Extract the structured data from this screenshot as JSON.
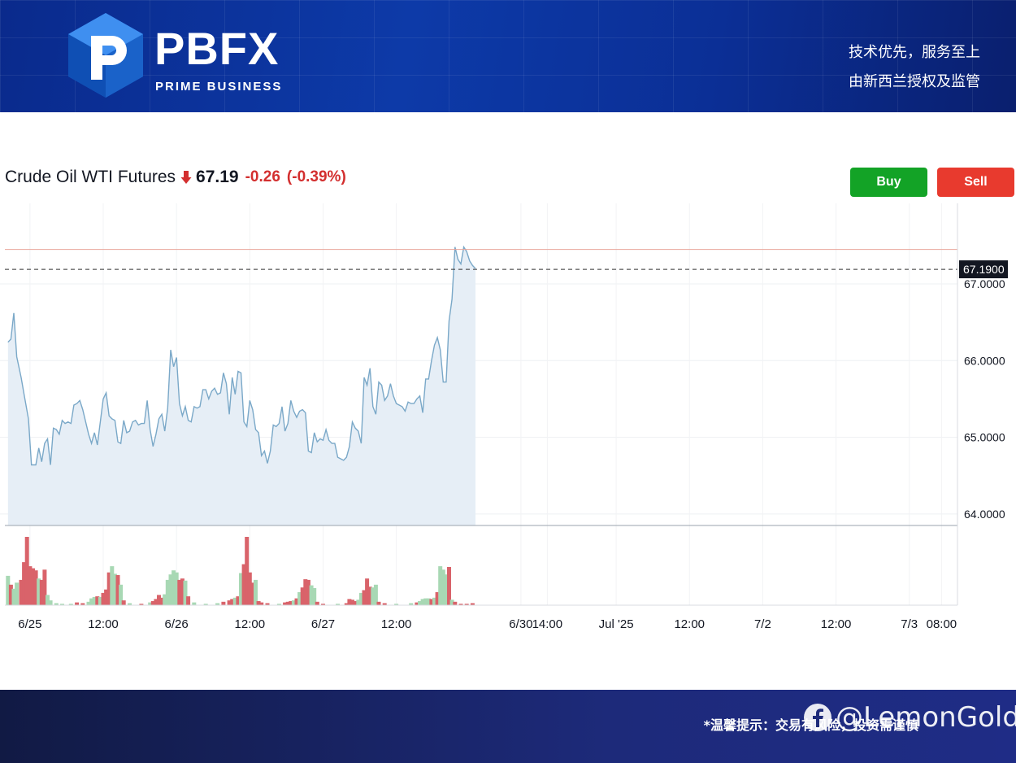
{
  "banner": {
    "brand": "PBFX",
    "brand_sub": "PRIME BUSINESS",
    "tagline_1": "技术优先，服务至上",
    "tagline_2": "由新西兰授权及监管"
  },
  "instrument": {
    "name": "Crude Oil WTI Futures",
    "last": "67.19",
    "change": "-0.26",
    "change_pct": "(-0.39%)",
    "direction": "down"
  },
  "actions": {
    "buy_label": "Buy",
    "sell_label": "Sell"
  },
  "colors": {
    "up": "#13a326",
    "down": "#e83a2e",
    "line": "#7aa8c8",
    "area": "#e6eef6",
    "vol_up": "#a8d8b4",
    "vol_down": "#d9636a",
    "ref_line": "#e8a59a"
  },
  "footer": {
    "notice": "*温馨提示：交易有风险，投资需谨慎",
    "watermark": "@LemonGold"
  },
  "chart_data": {
    "type": "area",
    "title": "Crude Oil WTI Futures",
    "y_ticks": [
      "64.0000",
      "65.0000",
      "66.0000",
      "67.0000"
    ],
    "ylim": [
      63.85,
      68.05
    ],
    "x_ticks": [
      {
        "label": "6/25",
        "t": 1.0
      },
      {
        "label": "12:00",
        "t": 1.5
      },
      {
        "label": "6/26",
        "t": 2.0
      },
      {
        "label": "12:00",
        "t": 2.5
      },
      {
        "label": "6/27",
        "t": 3.0
      },
      {
        "label": "12:00",
        "t": 3.5
      },
      {
        "label": "6/30",
        "t": 4.35
      },
      {
        "label": "14:00",
        "t": 4.53
      },
      {
        "label": "Jul '25",
        "t": 5.0
      },
      {
        "label": "12:00",
        "t": 5.5
      },
      {
        "label": "7/2",
        "t": 6.0
      },
      {
        "label": "12:00",
        "t": 6.5
      },
      {
        "label": "7/3",
        "t": 7.0
      },
      {
        "label": "08:00",
        "t": 7.22
      }
    ],
    "xlim": [
      0.84,
      7.24
    ],
    "current_price_label": "67.1900",
    "current_price": 67.19,
    "previous_close": 67.45,
    "grid": true,
    "series": [
      {
        "values": [
          [
            0.85,
            66.24
          ],
          [
            0.87,
            66.28
          ],
          [
            0.89,
            66.62
          ],
          [
            0.91,
            66.05
          ],
          [
            0.94,
            65.78
          ],
          [
            0.96,
            65.56
          ],
          [
            0.99,
            65.24
          ],
          [
            1.01,
            64.64
          ],
          [
            1.04,
            64.64
          ],
          [
            1.06,
            64.86
          ],
          [
            1.08,
            64.68
          ],
          [
            1.1,
            64.92
          ],
          [
            1.12,
            64.98
          ],
          [
            1.14,
            64.64
          ],
          [
            1.16,
            65.12
          ],
          [
            1.18,
            65.1
          ],
          [
            1.2,
            65.04
          ],
          [
            1.22,
            65.22
          ],
          [
            1.24,
            65.18
          ],
          [
            1.26,
            65.2
          ],
          [
            1.28,
            65.18
          ],
          [
            1.3,
            65.42
          ],
          [
            1.32,
            65.44
          ],
          [
            1.34,
            65.48
          ],
          [
            1.36,
            65.36
          ],
          [
            1.38,
            65.2
          ],
          [
            1.4,
            65.04
          ],
          [
            1.42,
            64.92
          ],
          [
            1.44,
            65.06
          ],
          [
            1.46,
            64.9
          ],
          [
            1.48,
            65.2
          ],
          [
            1.5,
            65.5
          ],
          [
            1.52,
            65.58
          ],
          [
            1.54,
            65.28
          ],
          [
            1.56,
            65.24
          ],
          [
            1.58,
            65.22
          ],
          [
            1.6,
            64.94
          ],
          [
            1.62,
            64.92
          ],
          [
            1.64,
            65.22
          ],
          [
            1.66,
            65.06
          ],
          [
            1.68,
            65.08
          ],
          [
            1.7,
            65.2
          ],
          [
            1.72,
            65.22
          ],
          [
            1.74,
            65.16
          ],
          [
            1.76,
            65.18
          ],
          [
            1.78,
            65.18
          ],
          [
            1.8,
            65.48
          ],
          [
            1.82,
            65.1
          ],
          [
            1.84,
            64.88
          ],
          [
            1.86,
            65.04
          ],
          [
            1.88,
            65.24
          ],
          [
            1.9,
            65.3
          ],
          [
            1.92,
            65.08
          ],
          [
            1.94,
            65.38
          ],
          [
            1.96,
            66.14
          ],
          [
            1.98,
            65.92
          ],
          [
            2.0,
            66.04
          ],
          [
            2.02,
            65.44
          ],
          [
            2.04,
            65.28
          ],
          [
            2.06,
            65.4
          ],
          [
            2.08,
            65.22
          ],
          [
            2.1,
            65.2
          ],
          [
            2.12,
            65.4
          ],
          [
            2.14,
            65.38
          ],
          [
            2.16,
            65.4
          ],
          [
            2.18,
            65.62
          ],
          [
            2.2,
            65.62
          ],
          [
            2.22,
            65.5
          ],
          [
            2.24,
            65.6
          ],
          [
            2.26,
            65.64
          ],
          [
            2.28,
            65.56
          ],
          [
            2.3,
            65.58
          ],
          [
            2.32,
            65.84
          ],
          [
            2.34,
            65.7
          ],
          [
            2.36,
            65.3
          ],
          [
            2.38,
            65.78
          ],
          [
            2.4,
            65.56
          ],
          [
            2.42,
            65.86
          ],
          [
            2.44,
            65.84
          ],
          [
            2.46,
            65.2
          ],
          [
            2.48,
            65.14
          ],
          [
            2.5,
            65.48
          ],
          [
            2.52,
            65.36
          ],
          [
            2.54,
            65.1
          ],
          [
            2.56,
            65.06
          ],
          [
            2.58,
            64.76
          ],
          [
            2.6,
            64.82
          ],
          [
            2.62,
            64.66
          ],
          [
            2.64,
            64.82
          ],
          [
            2.66,
            65.16
          ],
          [
            2.68,
            65.14
          ],
          [
            2.7,
            65.18
          ],
          [
            2.72,
            65.4
          ],
          [
            2.74,
            65.08
          ],
          [
            2.76,
            65.18
          ],
          [
            2.78,
            65.48
          ],
          [
            2.8,
            65.34
          ],
          [
            2.82,
            65.26
          ],
          [
            2.84,
            65.34
          ],
          [
            2.86,
            65.36
          ],
          [
            2.88,
            65.32
          ],
          [
            2.9,
            64.82
          ],
          [
            2.92,
            64.8
          ],
          [
            2.94,
            65.06
          ],
          [
            2.96,
            64.94
          ],
          [
            2.98,
            64.98
          ],
          [
            3.0,
            64.96
          ],
          [
            3.02,
            65.1
          ],
          [
            3.04,
            64.96
          ],
          [
            3.06,
            64.92
          ],
          [
            3.08,
            64.92
          ],
          [
            3.1,
            64.74
          ],
          [
            3.12,
            64.72
          ],
          [
            3.14,
            64.7
          ],
          [
            3.16,
            64.74
          ],
          [
            3.18,
            64.88
          ],
          [
            3.2,
            65.2
          ],
          [
            3.22,
            65.12
          ],
          [
            3.24,
            65.08
          ],
          [
            3.26,
            64.92
          ],
          [
            3.28,
            65.78
          ],
          [
            3.3,
            65.68
          ],
          [
            3.32,
            65.9
          ],
          [
            3.34,
            65.4
          ],
          [
            3.36,
            65.3
          ],
          [
            3.38,
            65.72
          ],
          [
            3.4,
            65.68
          ],
          [
            3.42,
            65.48
          ],
          [
            3.44,
            65.54
          ],
          [
            3.46,
            65.7
          ],
          [
            3.48,
            65.54
          ],
          [
            3.5,
            65.44
          ],
          [
            3.52,
            65.42
          ],
          [
            3.54,
            65.4
          ],
          [
            3.56,
            65.34
          ],
          [
            3.58,
            65.46
          ],
          [
            3.6,
            65.44
          ],
          [
            3.62,
            65.44
          ],
          [
            3.64,
            65.5
          ],
          [
            3.66,
            65.54
          ],
          [
            3.68,
            65.32
          ],
          [
            3.7,
            65.76
          ],
          [
            3.72,
            65.76
          ],
          [
            3.74,
            66.0
          ],
          [
            3.76,
            66.2
          ],
          [
            3.78,
            66.3
          ],
          [
            3.8,
            66.14
          ],
          [
            3.82,
            65.72
          ],
          [
            3.84,
            65.72
          ],
          [
            3.86,
            66.52
          ],
          [
            3.88,
            66.8
          ],
          [
            3.9,
            67.48
          ],
          [
            3.92,
            67.32
          ],
          [
            3.94,
            67.26
          ],
          [
            3.96,
            67.48
          ],
          [
            3.98,
            67.42
          ],
          [
            4.0,
            67.3
          ],
          [
            4.02,
            67.24
          ],
          [
            4.04,
            67.2
          ]
        ]
      }
    ],
    "volume": [
      [
        0.85,
        "up",
        0.43
      ],
      [
        0.87,
        "down",
        0.3
      ],
      [
        0.89,
        "up",
        0.24
      ],
      [
        0.91,
        "up",
        0.33
      ],
      [
        0.94,
        "down",
        0.37
      ],
      [
        0.96,
        "down",
        0.63
      ],
      [
        0.98,
        "down",
        1.0
      ],
      [
        1.0,
        "down",
        0.57
      ],
      [
        1.02,
        "down",
        0.54
      ],
      [
        1.04,
        "down",
        0.51
      ],
      [
        1.06,
        "up",
        0.39
      ],
      [
        1.08,
        "down",
        0.37
      ],
      [
        1.1,
        "down",
        0.52
      ],
      [
        1.12,
        "up",
        0.15
      ],
      [
        1.14,
        "up",
        0.07
      ],
      [
        1.18,
        "up",
        0.03
      ],
      [
        1.22,
        "up",
        0.02
      ],
      [
        1.28,
        "up",
        0.02
      ],
      [
        1.32,
        "down",
        0.04
      ],
      [
        1.36,
        "down",
        0.03
      ],
      [
        1.4,
        "up",
        0.05
      ],
      [
        1.42,
        "up",
        0.1
      ],
      [
        1.44,
        "up",
        0.12
      ],
      [
        1.46,
        "down",
        0.13
      ],
      [
        1.48,
        "up",
        0.12
      ],
      [
        1.5,
        "down",
        0.18
      ],
      [
        1.52,
        "down",
        0.23
      ],
      [
        1.54,
        "down",
        0.48
      ],
      [
        1.56,
        "up",
        0.57
      ],
      [
        1.58,
        "up",
        0.46
      ],
      [
        1.6,
        "down",
        0.44
      ],
      [
        1.62,
        "up",
        0.3
      ],
      [
        1.64,
        "down",
        0.07
      ],
      [
        1.68,
        "up",
        0.03
      ],
      [
        1.76,
        "down",
        0.02
      ],
      [
        1.82,
        "up",
        0.04
      ],
      [
        1.84,
        "down",
        0.06
      ],
      [
        1.86,
        "down",
        0.09
      ],
      [
        1.88,
        "down",
        0.15
      ],
      [
        1.9,
        "down",
        0.11
      ],
      [
        1.92,
        "up",
        0.16
      ],
      [
        1.94,
        "up",
        0.37
      ],
      [
        1.96,
        "up",
        0.45
      ],
      [
        1.98,
        "up",
        0.51
      ],
      [
        2.0,
        "up",
        0.48
      ],
      [
        2.02,
        "down",
        0.37
      ],
      [
        2.04,
        "down",
        0.39
      ],
      [
        2.06,
        "up",
        0.36
      ],
      [
        2.08,
        "down",
        0.13
      ],
      [
        2.12,
        "up",
        0.04
      ],
      [
        2.2,
        "up",
        0.02
      ],
      [
        2.28,
        "up",
        0.03
      ],
      [
        2.32,
        "down",
        0.05
      ],
      [
        2.36,
        "down",
        0.07
      ],
      [
        2.38,
        "down",
        0.09
      ],
      [
        2.4,
        "up",
        0.11
      ],
      [
        2.42,
        "down",
        0.13
      ],
      [
        2.44,
        "up",
        0.47
      ],
      [
        2.46,
        "down",
        0.6
      ],
      [
        2.48,
        "down",
        1.0
      ],
      [
        2.5,
        "down",
        0.48
      ],
      [
        2.52,
        "down",
        0.33
      ],
      [
        2.54,
        "up",
        0.37
      ],
      [
        2.56,
        "down",
        0.06
      ],
      [
        2.58,
        "down",
        0.04
      ],
      [
        2.62,
        "down",
        0.03
      ],
      [
        2.7,
        "up",
        0.02
      ],
      [
        2.74,
        "down",
        0.04
      ],
      [
        2.76,
        "down",
        0.05
      ],
      [
        2.78,
        "down",
        0.06
      ],
      [
        2.8,
        "up",
        0.07
      ],
      [
        2.82,
        "down",
        0.1
      ],
      [
        2.84,
        "up",
        0.19
      ],
      [
        2.86,
        "down",
        0.26
      ],
      [
        2.88,
        "down",
        0.38
      ],
      [
        2.9,
        "down",
        0.37
      ],
      [
        2.92,
        "up",
        0.29
      ],
      [
        2.94,
        "up",
        0.25
      ],
      [
        2.96,
        "down",
        0.05
      ],
      [
        3.0,
        "down",
        0.02
      ],
      [
        3.1,
        "up",
        0.02
      ],
      [
        3.16,
        "down",
        0.03
      ],
      [
        3.18,
        "down",
        0.09
      ],
      [
        3.2,
        "down",
        0.08
      ],
      [
        3.22,
        "down",
        0.06
      ],
      [
        3.24,
        "up",
        0.08
      ],
      [
        3.26,
        "up",
        0.18
      ],
      [
        3.28,
        "down",
        0.22
      ],
      [
        3.3,
        "down",
        0.39
      ],
      [
        3.32,
        "down",
        0.27
      ],
      [
        3.34,
        "up",
        0.26
      ],
      [
        3.36,
        "up",
        0.3
      ],
      [
        3.38,
        "down",
        0.05
      ],
      [
        3.42,
        "down",
        0.03
      ],
      [
        3.5,
        "up",
        0.02
      ],
      [
        3.6,
        "up",
        0.03
      ],
      [
        3.64,
        "down",
        0.04
      ],
      [
        3.66,
        "up",
        0.06
      ],
      [
        3.68,
        "up",
        0.09
      ],
      [
        3.7,
        "up",
        0.1
      ],
      [
        3.72,
        "up",
        0.1
      ],
      [
        3.74,
        "down",
        0.09
      ],
      [
        3.76,
        "up",
        0.11
      ],
      [
        3.78,
        "down",
        0.19
      ],
      [
        3.8,
        "up",
        0.57
      ],
      [
        3.82,
        "up",
        0.52
      ],
      [
        3.84,
        "up",
        0.45
      ],
      [
        3.86,
        "down",
        0.56
      ],
      [
        3.88,
        "up",
        0.08
      ],
      [
        3.9,
        "down",
        0.05
      ],
      [
        3.94,
        "down",
        0.02
      ],
      [
        3.98,
        "down",
        0.02
      ],
      [
        4.02,
        "down",
        0.03
      ]
    ]
  }
}
